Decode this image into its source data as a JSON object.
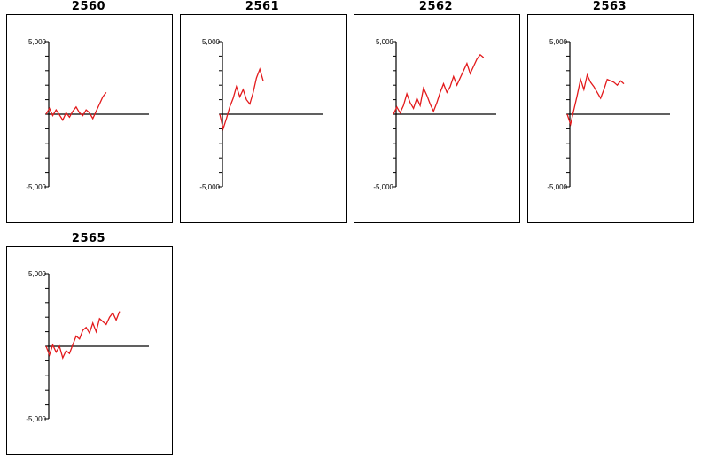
{
  "chart_data": [
    {
      "type": "line",
      "title": "2560",
      "ytick_labels": [
        "5,000",
        "-5,000"
      ],
      "ylim": [
        -5000,
        5000
      ],
      "series": [
        {
          "color": "#e31a1c",
          "x": [
            0,
            1,
            2,
            3,
            4,
            5,
            6,
            7,
            8,
            9,
            10,
            11,
            12,
            13,
            14,
            15,
            16,
            17,
            18
          ],
          "y": [
            0,
            400,
            -100,
            300,
            -50,
            -400,
            100,
            -200,
            200,
            500,
            100,
            -100,
            300,
            100,
            -300,
            200,
            700,
            1200,
            1500
          ]
        }
      ]
    },
    {
      "type": "line",
      "title": "2561",
      "ytick_labels": [
        "5,000",
        "-5,000"
      ],
      "ylim": [
        -5000,
        5000
      ],
      "series": [
        {
          "color": "#e31a1c",
          "x": [
            0,
            1,
            2,
            3,
            4,
            5,
            6,
            7,
            8,
            9,
            10,
            11,
            12,
            13
          ],
          "y": [
            0,
            -1000,
            -300,
            500,
            1100,
            1900,
            1200,
            1700,
            1000,
            700,
            1500,
            2500,
            3100,
            2300
          ]
        }
      ]
    },
    {
      "type": "line",
      "title": "2562",
      "ytick_labels": [
        "5,000",
        "-5,000"
      ],
      "ylim": [
        -5000,
        5000
      ],
      "series": [
        {
          "color": "#e31a1c",
          "x": [
            0,
            1,
            2,
            3,
            4,
            5,
            6,
            7,
            8,
            9,
            10,
            11,
            12,
            13,
            14,
            15,
            16,
            17,
            18,
            19,
            20,
            21,
            22,
            23,
            24,
            25,
            26,
            27
          ],
          "y": [
            0,
            500,
            100,
            600,
            1400,
            800,
            400,
            1100,
            600,
            1800,
            1300,
            700,
            200,
            800,
            1500,
            2100,
            1500,
            1900,
            2600,
            2000,
            2500,
            3000,
            3500,
            2800,
            3300,
            3800,
            4100,
            3900
          ]
        }
      ]
    },
    {
      "type": "line",
      "title": "2563",
      "ytick_labels": [
        "5,000",
        "-5,000"
      ],
      "ylim": [
        -5000,
        5000
      ],
      "series": [
        {
          "color": "#e31a1c",
          "x": [
            0,
            1,
            2,
            3,
            4,
            5,
            6,
            7,
            8,
            9,
            10,
            11,
            12,
            13,
            14,
            15,
            16,
            17
          ],
          "y": [
            0,
            -700,
            300,
            1300,
            2400,
            1700,
            2700,
            2200,
            1900,
            1500,
            1100,
            1700,
            2400,
            2300,
            2200,
            2000,
            2300,
            2100
          ]
        }
      ]
    },
    {
      "type": "line",
      "title": "2565",
      "ytick_labels": [
        "5,000",
        "-5,000"
      ],
      "ylim": [
        -5000,
        5000
      ],
      "series": [
        {
          "color": "#e31a1c",
          "x": [
            0,
            1,
            2,
            3,
            4,
            5,
            6,
            7,
            8,
            9,
            10,
            11,
            12,
            13,
            14,
            15,
            16,
            17,
            18,
            19,
            20,
            21,
            22
          ],
          "y": [
            0,
            -600,
            100,
            -400,
            0,
            -800,
            -300,
            -500,
            100,
            700,
            500,
            1100,
            1300,
            900,
            1600,
            1000,
            1900,
            1700,
            1500,
            2000,
            2300,
            1800,
            2400
          ]
        }
      ]
    }
  ]
}
